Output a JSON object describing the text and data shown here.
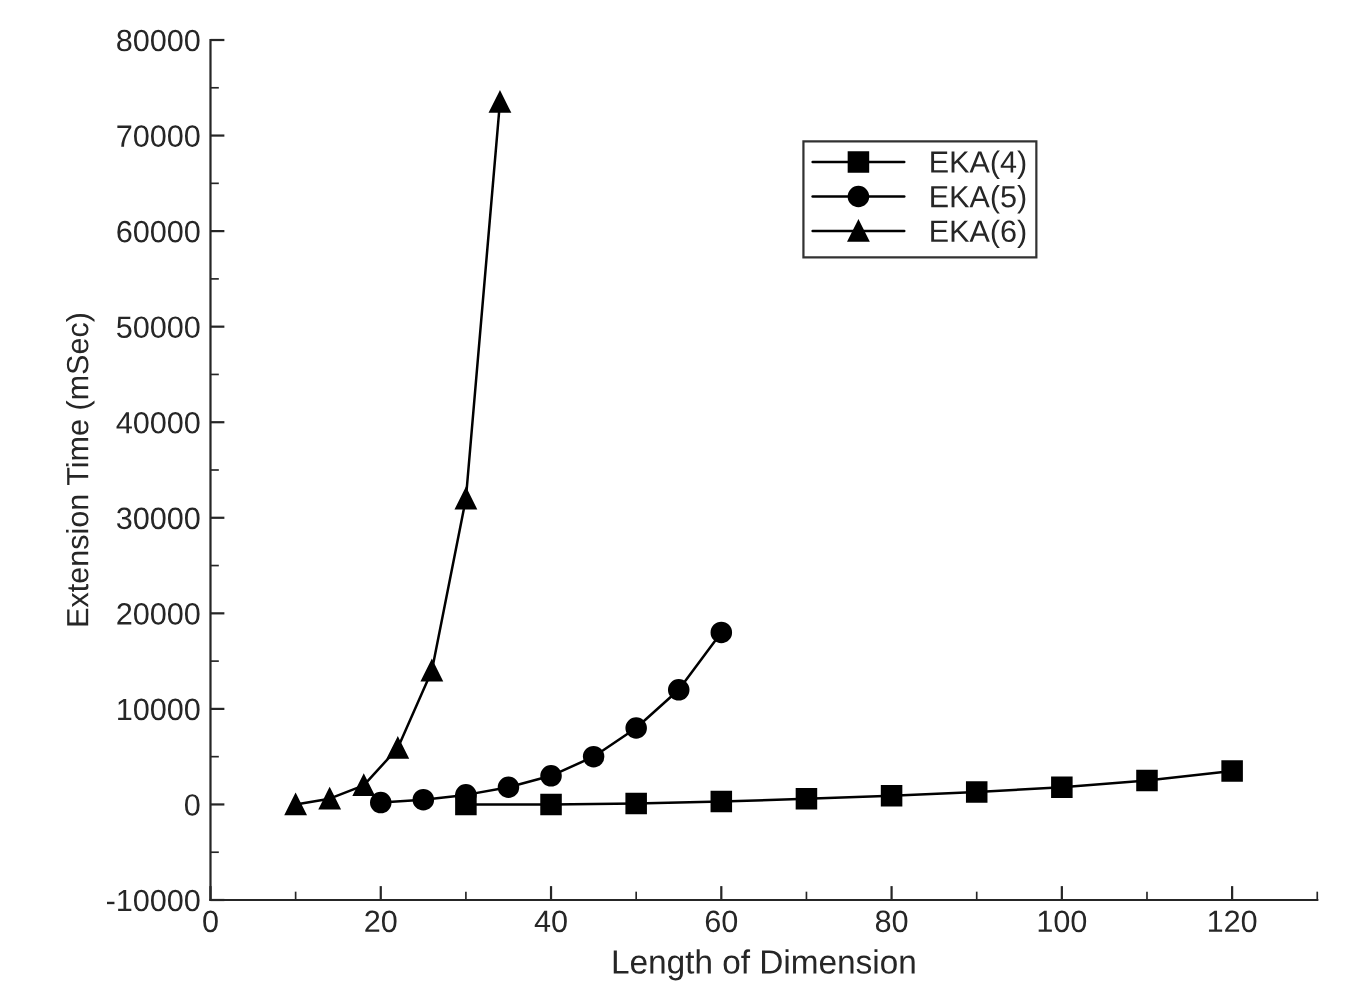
{
  "chart_data": {
    "type": "line",
    "xlabel": "Length of Dimension",
    "ylabel": "Extension Time (mSec)",
    "xlim": [
      0,
      130
    ],
    "xticks": [
      0,
      20,
      40,
      60,
      80,
      100,
      120
    ],
    "ylim": [
      -10000,
      80000
    ],
    "yticks": [
      -10000,
      0,
      10000,
      20000,
      30000,
      40000,
      50000,
      60000,
      70000,
      80000
    ],
    "grid": false,
    "legend": "top right",
    "series": [
      {
        "name": "EKA(4)",
        "color": "#000000",
        "marker": "square",
        "x": [
          30,
          40,
          50,
          60,
          70,
          80,
          90,
          100,
          110,
          120
        ],
        "values": [
          0,
          0,
          100,
          300,
          600,
          900,
          1300,
          1800,
          2500,
          3500
        ]
      },
      {
        "name": "EKA(5)",
        "color": "#000000",
        "marker": "circle",
        "x": [
          20,
          25,
          30,
          35,
          40,
          45,
          50,
          55,
          60
        ],
        "values": [
          200,
          500,
          1000,
          1800,
          3000,
          5000,
          8000,
          12000,
          18000
        ]
      },
      {
        "name": "EKA(6)",
        "color": "#000000",
        "marker": "triangle",
        "x": [
          10,
          14,
          18,
          22,
          26,
          30,
          34
        ],
        "values": [
          0,
          600,
          2000,
          5900,
          14000,
          32000,
          73500
        ]
      }
    ]
  }
}
